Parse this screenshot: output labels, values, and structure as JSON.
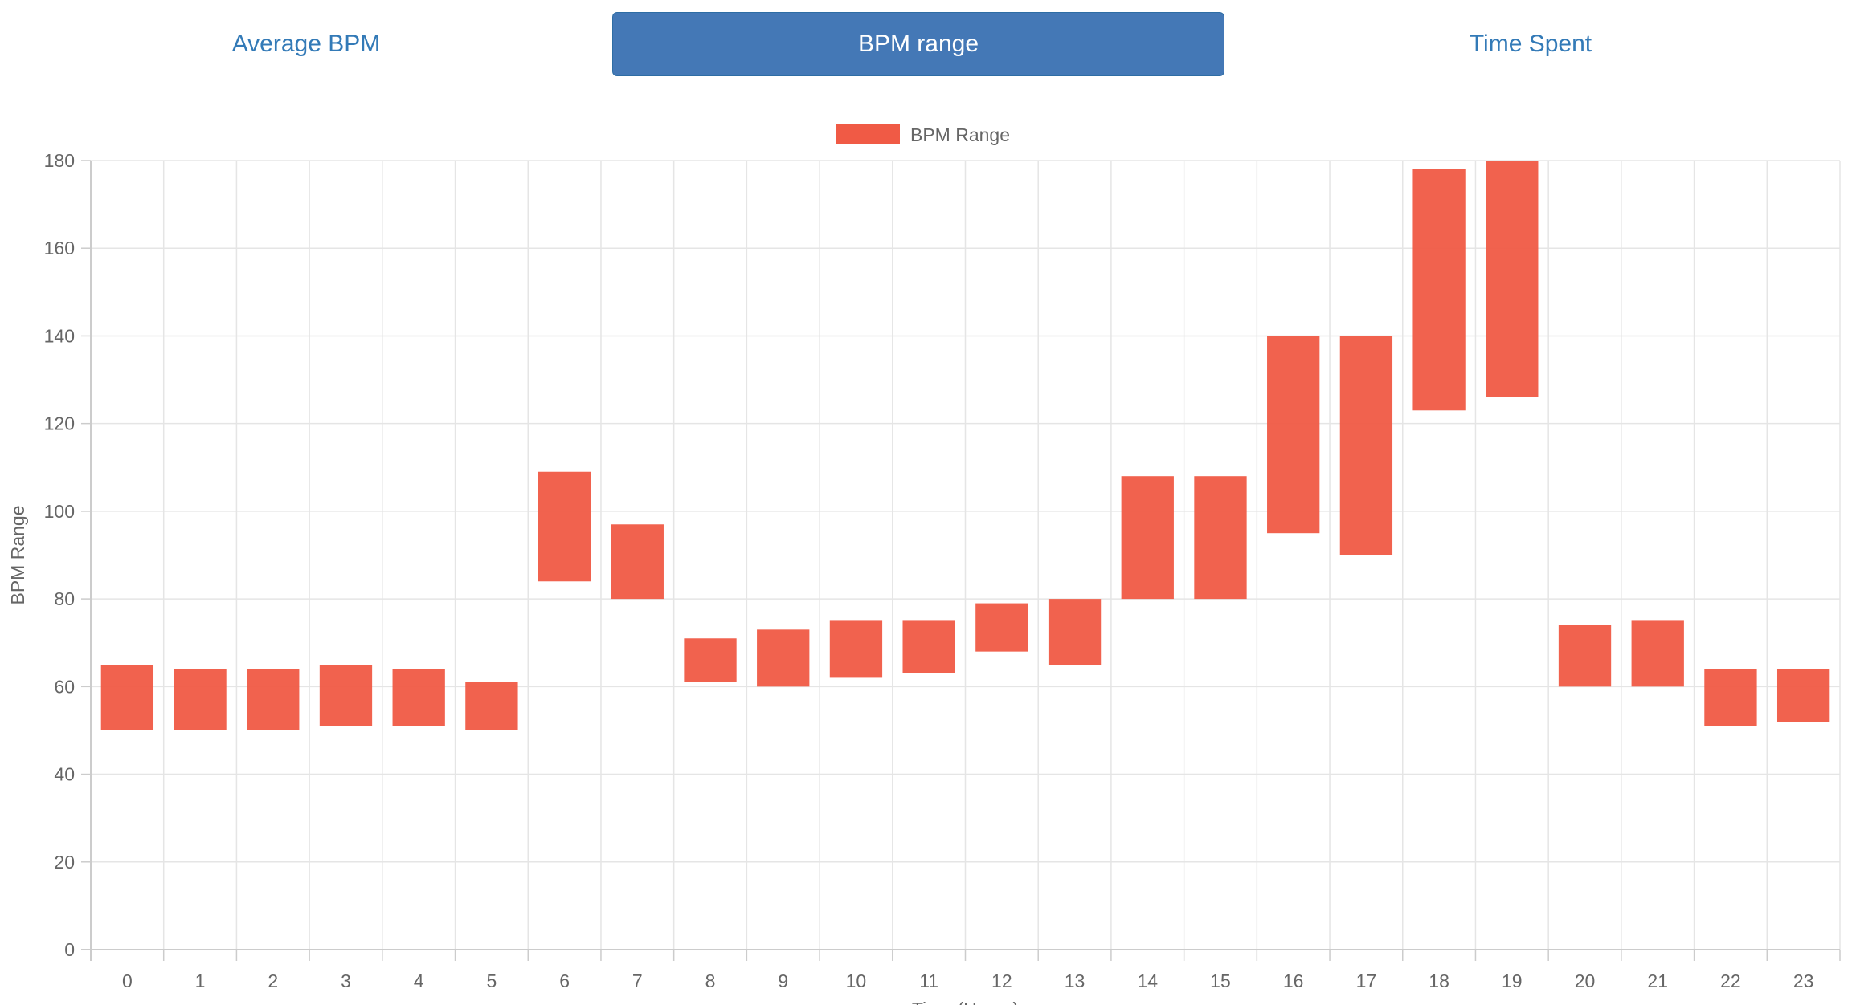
{
  "tabs": [
    {
      "label": "Average BPM",
      "active": false
    },
    {
      "label": "BPM range",
      "active": true
    },
    {
      "label": "Time Spent",
      "active": false
    }
  ],
  "colors": {
    "bar": "#f05a45",
    "accent": "#4478b6",
    "grid": "#e5e5e5",
    "text": "#666666"
  },
  "chart_data": {
    "type": "bar",
    "subtype": "floating-range",
    "legend": {
      "label": "BPM Range",
      "position": "top-center"
    },
    "xlabel": "Time (Hours)",
    "ylabel": "BPM Range",
    "ylim": [
      0,
      180
    ],
    "yticks": [
      0,
      20,
      40,
      60,
      80,
      100,
      120,
      140,
      160,
      180
    ],
    "grid": true,
    "categories": [
      "0",
      "1",
      "2",
      "3",
      "4",
      "5",
      "6",
      "7",
      "8",
      "9",
      "10",
      "11",
      "12",
      "13",
      "14",
      "15",
      "16",
      "17",
      "18",
      "19",
      "20",
      "21",
      "22",
      "23"
    ],
    "series": [
      {
        "name": "BPM Range",
        "ranges": [
          [
            50,
            65
          ],
          [
            50,
            64
          ],
          [
            50,
            64
          ],
          [
            51,
            65
          ],
          [
            51,
            64
          ],
          [
            50,
            61
          ],
          [
            84,
            109
          ],
          [
            80,
            97
          ],
          [
            61,
            71
          ],
          [
            60,
            73
          ],
          [
            62,
            75
          ],
          [
            63,
            75
          ],
          [
            68,
            79
          ],
          [
            65,
            80
          ],
          [
            80,
            108
          ],
          [
            80,
            108
          ],
          [
            95,
            140
          ],
          [
            90,
            140
          ],
          [
            123,
            178
          ],
          [
            126,
            180
          ],
          [
            60,
            74
          ],
          [
            60,
            75
          ],
          [
            51,
            64
          ],
          [
            52,
            64
          ]
        ]
      }
    ]
  }
}
